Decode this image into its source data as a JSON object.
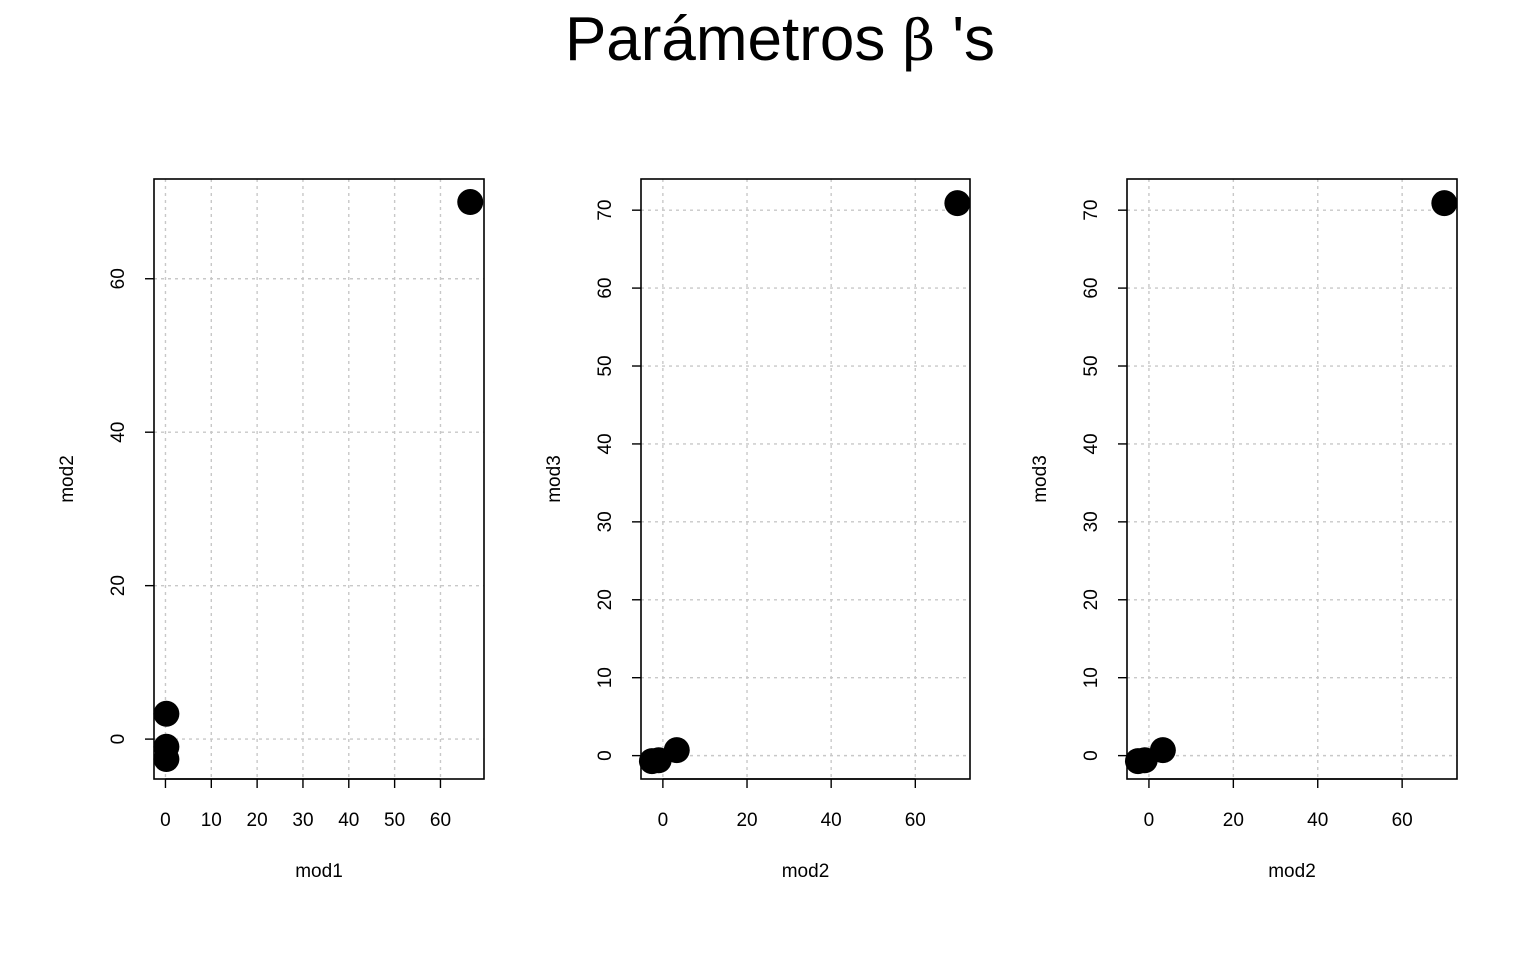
{
  "title": {
    "prefix": "Parámetros ",
    "symbol": "β",
    "suffix": " 's"
  },
  "chart_data": [
    {
      "type": "scatter",
      "xlabel": "mod1",
      "ylabel": "mod2",
      "xlim": [
        -2.5,
        69.5
      ],
      "ylim": [
        -5.2,
        73
      ],
      "xticks": [
        0,
        10,
        20,
        30,
        40,
        50,
        60
      ],
      "yticks": [
        0,
        20,
        40,
        60
      ],
      "grid": true,
      "points": [
        {
          "x": 0.2,
          "y": 3.3
        },
        {
          "x": 0.2,
          "y": -1.0
        },
        {
          "x": 0.2,
          "y": -2.6
        },
        {
          "x": 66.5,
          "y": 70.0
        }
      ]
    },
    {
      "type": "scatter",
      "xlabel": "mod2",
      "ylabel": "mod3",
      "xlim": [
        -5.2,
        73
      ],
      "ylim": [
        -3,
        74
      ],
      "xticks": [
        0,
        20,
        40,
        60
      ],
      "yticks": [
        0,
        10,
        20,
        30,
        40,
        50,
        60,
        70
      ],
      "grid": true,
      "points": [
        {
          "x": -2.6,
          "y": -0.7
        },
        {
          "x": -1.0,
          "y": -0.6
        },
        {
          "x": 3.3,
          "y": 0.7
        },
        {
          "x": 70.0,
          "y": 70.9
        }
      ]
    },
    {
      "type": "scatter",
      "xlabel": "mod2",
      "ylabel": "mod3",
      "xlim": [
        -5.2,
        73
      ],
      "ylim": [
        -3,
        74
      ],
      "xticks": [
        0,
        20,
        40,
        60
      ],
      "yticks": [
        0,
        10,
        20,
        30,
        40,
        50,
        60,
        70
      ],
      "grid": true,
      "points": [
        {
          "x": -2.6,
          "y": -0.7
        },
        {
          "x": -1.0,
          "y": -0.6
        },
        {
          "x": 3.3,
          "y": 0.7
        },
        {
          "x": 70.0,
          "y": 70.9
        }
      ]
    }
  ]
}
